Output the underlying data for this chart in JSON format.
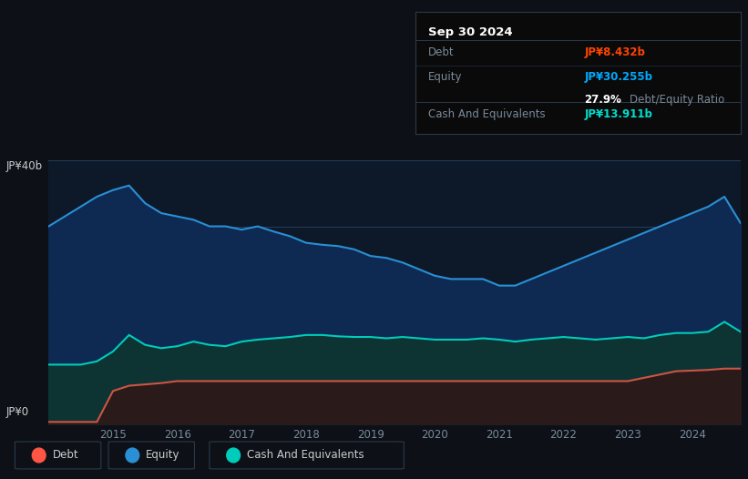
{
  "bg_color": "#0d1117",
  "plot_bg_color": "#0d1928",
  "grid_color": "#263d5c",
  "tooltip_date": "Sep 30 2024",
  "tooltip_debt_label": "Debt",
  "tooltip_debt_value": "JP¥8.432b",
  "tooltip_debt_color": "#ff4400",
  "tooltip_equity_label": "Equity",
  "tooltip_equity_value": "JP¥30.255b",
  "tooltip_equity_color": "#00aaff",
  "tooltip_ratio_value": "27.9%",
  "tooltip_ratio_label": "Debt/Equity Ratio",
  "tooltip_cash_label": "Cash And Equivalents",
  "tooltip_cash_value": "JP¥13.911b",
  "tooltip_cash_color": "#00ddcc",
  "ylabel_top": "JP¥40b",
  "ylabel_zero": "JP¥0",
  "equity_fill": "#0e2a52",
  "equity_line": "#2a8fd4",
  "cash_fill": "#0d3333",
  "cash_line": "#00ccbb",
  "debt_fill": "#2a1a1a",
  "debt_line": "#cc5544",
  "legend_debt_color": "#ff5544",
  "legend_equity_color": "#2a8fd4",
  "legend_cash_color": "#00ccbb",
  "legend_bg": "#0d1928",
  "legend_border": "#2a3a4a",
  "ylim": [
    0,
    40
  ],
  "years": [
    2014.0,
    2014.25,
    2014.5,
    2014.75,
    2015.0,
    2015.25,
    2015.5,
    2015.75,
    2016.0,
    2016.25,
    2016.5,
    2016.75,
    2017.0,
    2017.25,
    2017.5,
    2017.75,
    2018.0,
    2018.25,
    2018.5,
    2018.75,
    2019.0,
    2019.25,
    2019.5,
    2019.75,
    2020.0,
    2020.25,
    2020.5,
    2020.75,
    2021.0,
    2021.25,
    2021.5,
    2021.75,
    2022.0,
    2022.25,
    2022.5,
    2022.75,
    2023.0,
    2023.25,
    2023.5,
    2023.75,
    2024.0,
    2024.25,
    2024.5,
    2024.75
  ],
  "equity": [
    30.0,
    31.5,
    33.0,
    34.5,
    35.5,
    36.2,
    33.5,
    32.0,
    31.5,
    31.0,
    30.0,
    30.0,
    29.5,
    30.0,
    29.2,
    28.5,
    27.5,
    27.2,
    27.0,
    26.5,
    25.5,
    25.2,
    24.5,
    23.5,
    22.5,
    22.0,
    22.0,
    22.0,
    21.0,
    21.0,
    22.0,
    23.0,
    24.0,
    25.0,
    26.0,
    27.0,
    28.0,
    29.0,
    30.0,
    31.0,
    32.0,
    33.0,
    34.5,
    30.5
  ],
  "cash": [
    9.0,
    9.0,
    9.0,
    9.5,
    11.0,
    13.5,
    12.0,
    11.5,
    11.8,
    12.5,
    12.0,
    11.8,
    12.5,
    12.8,
    13.0,
    13.2,
    13.5,
    13.5,
    13.3,
    13.2,
    13.2,
    13.0,
    13.2,
    13.0,
    12.8,
    12.8,
    12.8,
    13.0,
    12.8,
    12.5,
    12.8,
    13.0,
    13.2,
    13.0,
    12.8,
    13.0,
    13.2,
    13.0,
    13.5,
    13.8,
    13.8,
    14.0,
    15.5,
    14.0
  ],
  "debt": [
    0.3,
    0.3,
    0.3,
    0.3,
    5.0,
    5.8,
    6.0,
    6.2,
    6.5,
    6.5,
    6.5,
    6.5,
    6.5,
    6.5,
    6.5,
    6.5,
    6.5,
    6.5,
    6.5,
    6.5,
    6.5,
    6.5,
    6.5,
    6.5,
    6.5,
    6.5,
    6.5,
    6.5,
    6.5,
    6.5,
    6.5,
    6.5,
    6.5,
    6.5,
    6.5,
    6.5,
    6.5,
    7.0,
    7.5,
    8.0,
    8.1,
    8.2,
    8.4,
    8.4
  ],
  "xtick_years": [
    2015,
    2016,
    2017,
    2018,
    2019,
    2020,
    2021,
    2022,
    2023,
    2024
  ],
  "text_color": "#cccccc",
  "axis_text_color": "#7a8a9a",
  "divider_color": "#2a3a4a"
}
